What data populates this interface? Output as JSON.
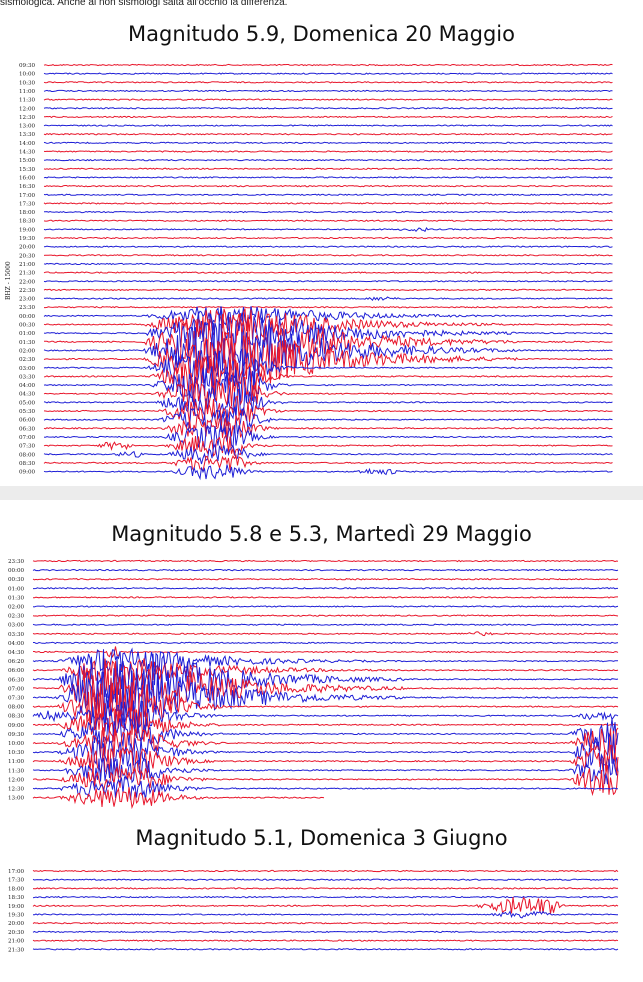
{
  "caption": "sismologica. Anche ai non sismologi salta all'occhio la differenza.",
  "panels": [
    {
      "title": "Magnitudo 5.9,  Domenica 20 Maggio",
      "ylabel": "BHZ - 15000",
      "times": [
        "09:30",
        "10:00",
        "10:30",
        "11:00",
        "11:30",
        "12:00",
        "12:30",
        "13:00",
        "13:30",
        "14:00",
        "14:30",
        "15:00",
        "15:30",
        "16:00",
        "16:30",
        "17:00",
        "17:30",
        "18:00",
        "18:30",
        "19:00",
        "19:30",
        "20:00",
        "20:30",
        "21:00",
        "21:30",
        "22:00",
        "22:30",
        "23:00",
        "23:30",
        "00:00",
        "00:30",
        "01:00",
        "01:30",
        "02:00",
        "02:30",
        "03:00",
        "03:30",
        "04:00",
        "04:30",
        "05:00",
        "05:30",
        "06:00",
        "06:30",
        "07:00",
        "07:30",
        "08:00",
        "08:30",
        "09:00"
      ]
    },
    {
      "title": "Magnitudo 5.8 e 5.3,  Martedì 29 Maggio",
      "ylabel": "",
      "times": [
        "23:30",
        "00:00",
        "00:30",
        "01:00",
        "01:30",
        "02:00",
        "02:30",
        "03:00",
        "03:30",
        "04:00",
        "04:30",
        "06:20",
        "06:00",
        "06:30",
        "07:00",
        "07:30",
        "08:00",
        "08:30",
        "09:00",
        "09:30",
        "10:00",
        "10:30",
        "11:00",
        "11:30",
        "12:00",
        "12:30",
        "13:00"
      ]
    },
    {
      "title": "Magnitudo 5.1,  Domenica 3 Giugno",
      "ylabel": "",
      "times": [
        "17:00",
        "17:30",
        "18:00",
        "18:30",
        "19:00",
        "19:30",
        "20:00",
        "20:30",
        "21:00",
        "21:30"
      ]
    }
  ],
  "colors": {
    "red": "#e8162b",
    "blue": "#1f1fd6"
  }
}
